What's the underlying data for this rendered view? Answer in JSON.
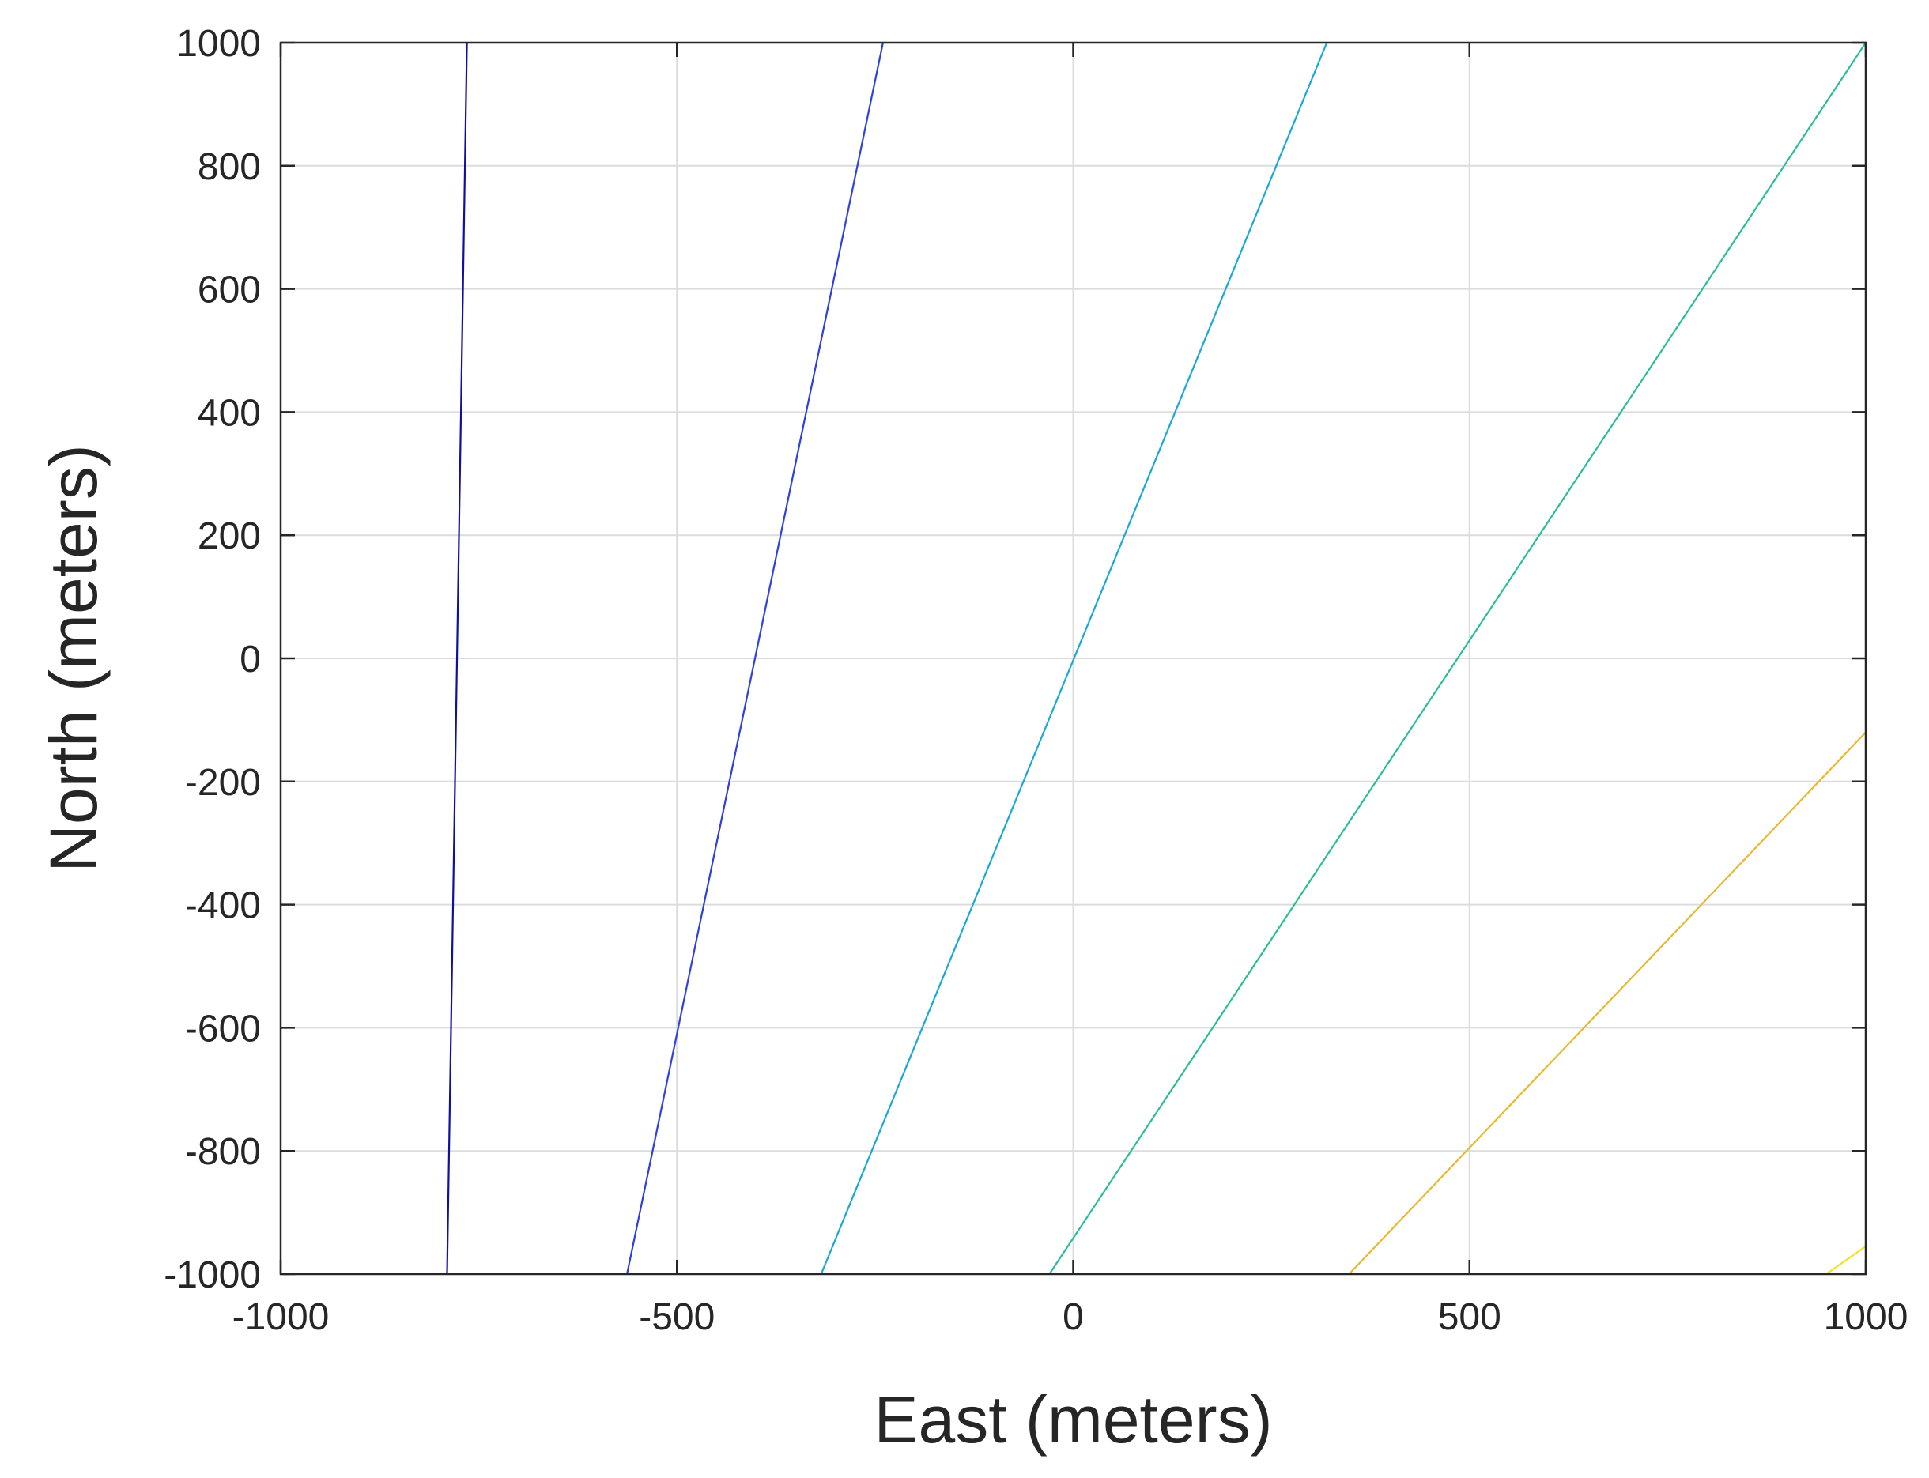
{
  "chart_data": {
    "type": "line",
    "title": "",
    "xlabel": "East (meters)",
    "ylabel": "North (meters)",
    "xlim": [
      -1000,
      1000
    ],
    "ylim": [
      -1000,
      1000
    ],
    "x_ticks": [
      -1000,
      -500,
      0,
      500,
      1000
    ],
    "y_ticks": [
      -1000,
      -800,
      -600,
      -400,
      -200,
      0,
      200,
      400,
      600,
      800,
      1000
    ],
    "x_tick_labels": [
      "-1000",
      "-500",
      "0",
      "500",
      "1000"
    ],
    "y_tick_labels": [
      "-1000",
      "-800",
      "-600",
      "-400",
      "-200",
      "0",
      "200",
      "400",
      "600",
      "800",
      "1000"
    ],
    "grid": true,
    "legend": "none",
    "series": [
      {
        "color": "#1010a0",
        "x": [
          -790,
          -765
        ],
        "y": [
          -1000,
          1000
        ]
      },
      {
        "color": "#2f3fe0",
        "x": [
          -563,
          -240
        ],
        "y": [
          -1000,
          1000
        ]
      },
      {
        "color": "#1aa8d6",
        "x": [
          -318,
          320
        ],
        "y": [
          -1000,
          1000
        ]
      },
      {
        "color": "#2bbd9a",
        "x": [
          -30,
          1000
        ],
        "y": [
          -1000,
          1000
        ]
      },
      {
        "color": "#e8b830",
        "x": [
          348,
          1000
        ],
        "y": [
          -1000,
          -120
        ]
      },
      {
        "color": "#f2e21e",
        "x": [
          950,
          1000
        ],
        "y": [
          -1000,
          -955
        ]
      }
    ]
  }
}
